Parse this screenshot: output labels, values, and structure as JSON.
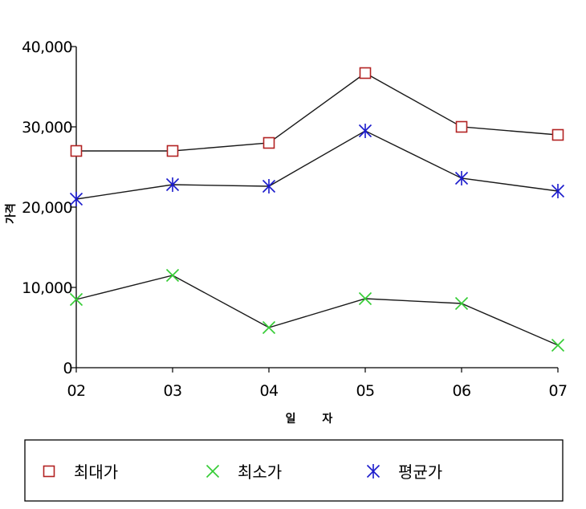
{
  "chart_data": {
    "type": "line",
    "title": "",
    "xlabel": "일 자",
    "ylabel": "가격",
    "categories": [
      "02",
      "03",
      "04",
      "05",
      "06",
      "07"
    ],
    "ylim": [
      0,
      40000
    ],
    "yticks": [
      0,
      10000,
      20000,
      30000,
      40000
    ],
    "ytick_labels": [
      "0",
      "10,000",
      "20,000",
      "30,000",
      "40,000"
    ],
    "grid": false,
    "legend_position": "bottom",
    "series": [
      {
        "name": "최대가",
        "marker": "square",
        "color": "#b22222",
        "values": [
          27000,
          27000,
          28000,
          36700,
          30000,
          29000
        ]
      },
      {
        "name": "최소가",
        "marker": "x",
        "color": "#33cc33",
        "values": [
          8500,
          11500,
          5000,
          8600,
          8000,
          2800
        ]
      },
      {
        "name": "평균가",
        "marker": "asterisk",
        "color": "#1a1acc",
        "values": [
          21000,
          22800,
          22600,
          29500,
          23600,
          22000
        ]
      }
    ]
  }
}
